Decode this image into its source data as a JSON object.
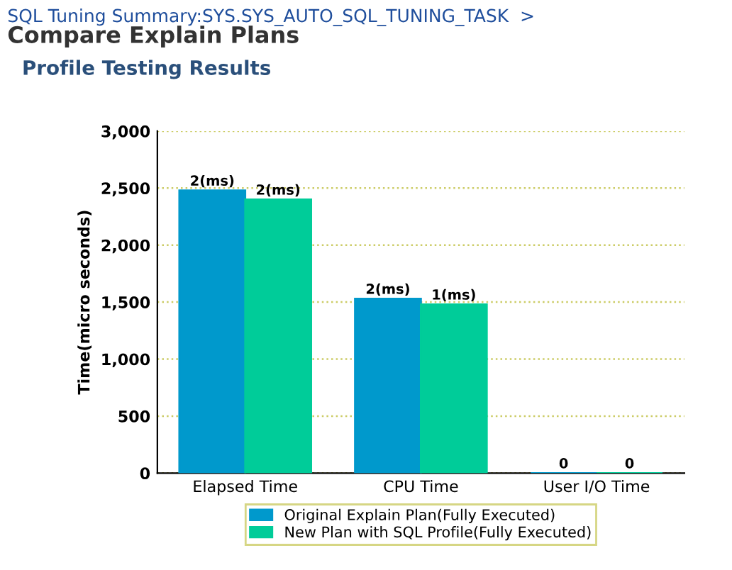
{
  "chart_data": {
    "type": "bar",
    "title": "Compare Explain Plans",
    "subtitle": "Profile Testing Results",
    "annotations": [
      "SQL Tuning Summary:SYS.SYS_AUTO_SQL_TUNING_TASK  >",
      {
        "text": "2(ms)",
        "x": "Elapsed Time",
        "y": 2480
      },
      {
        "text": "2(ms)",
        "x": "Elapsed Time",
        "y": 2400
      },
      {
        "text": "2(ms)",
        "x": "CPU Time",
        "y": 1530
      },
      {
        "text": "1(ms)",
        "x": "CPU Time",
        "y": 1480
      },
      {
        "text": "0",
        "x": "User I/O Time",
        "y": 0
      },
      {
        "text": "0",
        "x": "User I/O Time",
        "y": 0
      }
    ],
    "ylabel": "Time(micro seconds)",
    "categories": [
      "Elapsed Time",
      "CPU Time",
      "User I/O Time"
    ],
    "series": [
      {
        "name": "Original Explain Plan(Fully Executed)",
        "color": "#0099cc",
        "values": [
          2480,
          1530,
          0
        ]
      },
      {
        "name": "New Plan with SQL Profile(Fully Executed)",
        "color": "#00cc99",
        "values": [
          2400,
          1480,
          0
        ]
      }
    ],
    "ylim": [
      0,
      3000
    ],
    "yticks": [
      {
        "value": 0,
        "label": "0"
      },
      {
        "value": 500,
        "label": "500"
      },
      {
        "value": 1000,
        "label": "1,000"
      },
      {
        "value": 1500,
        "label": "1,500"
      },
      {
        "value": 2000,
        "label": "2,000"
      },
      {
        "value": 2500,
        "label": "2,500"
      },
      {
        "value": 3000,
        "label": "3,000"
      }
    ],
    "grid": "y",
    "legend": "bottom"
  }
}
